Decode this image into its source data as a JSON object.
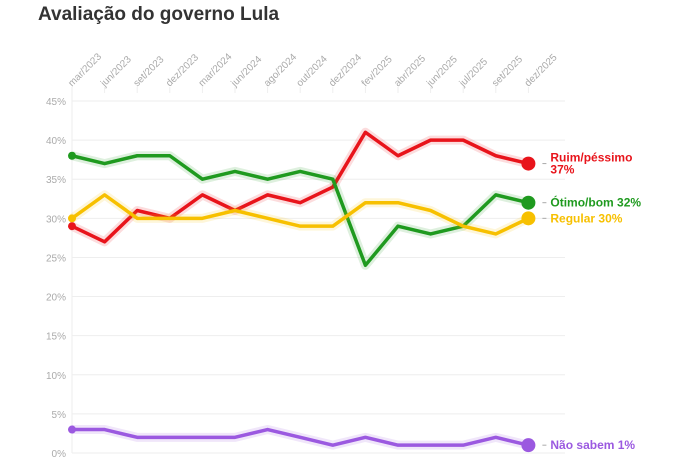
{
  "chart_data": {
    "type": "line",
    "title": "Avaliação do governo Lula",
    "categories": [
      "mar/2023",
      "jun/2023",
      "set/2023",
      "dez/2023",
      "mar/2024",
      "jun/2024",
      "ago/2024",
      "out/2024",
      "dez/2024",
      "fev/2025",
      "abr/2025",
      "jun/2025",
      "jul/2025",
      "set/2025",
      "dez/2025"
    ],
    "ylim": [
      0,
      45
    ],
    "yticks": [
      "0%",
      "5%",
      "10%",
      "15%",
      "20%",
      "25%",
      "30%",
      "35%",
      "40%",
      "45%"
    ],
    "grid": true,
    "series": [
      {
        "name": "Ruim/péssimo",
        "label_line1": "Ruim/péssimo",
        "label_line2": "37%",
        "color": "#e8141b",
        "values": [
          29,
          27,
          31,
          30,
          33,
          31,
          33,
          32,
          34,
          41,
          38,
          40,
          40,
          38,
          37
        ]
      },
      {
        "name": "Ótimo/bom",
        "label_line1": "Ótimo/bom 32%",
        "label_line2": "",
        "color": "#1f9a1f",
        "values": [
          38,
          37,
          38,
          38,
          35,
          36,
          35,
          36,
          35,
          24,
          29,
          28,
          29,
          33,
          32
        ]
      },
      {
        "name": "Regular",
        "label_line1": "Regular 30%",
        "label_line2": "",
        "color": "#f7c000",
        "values": [
          30,
          33,
          30,
          30,
          30,
          31,
          30,
          29,
          29,
          32,
          32,
          31,
          29,
          28,
          30
        ]
      },
      {
        "name": "Não sabem",
        "label_line1": "Não sabem 1%",
        "label_line2": "",
        "color": "#9b59e0",
        "values": [
          3,
          3,
          2,
          2,
          2,
          2,
          3,
          2,
          1,
          2,
          1,
          1,
          1,
          2,
          1
        ]
      }
    ]
  }
}
